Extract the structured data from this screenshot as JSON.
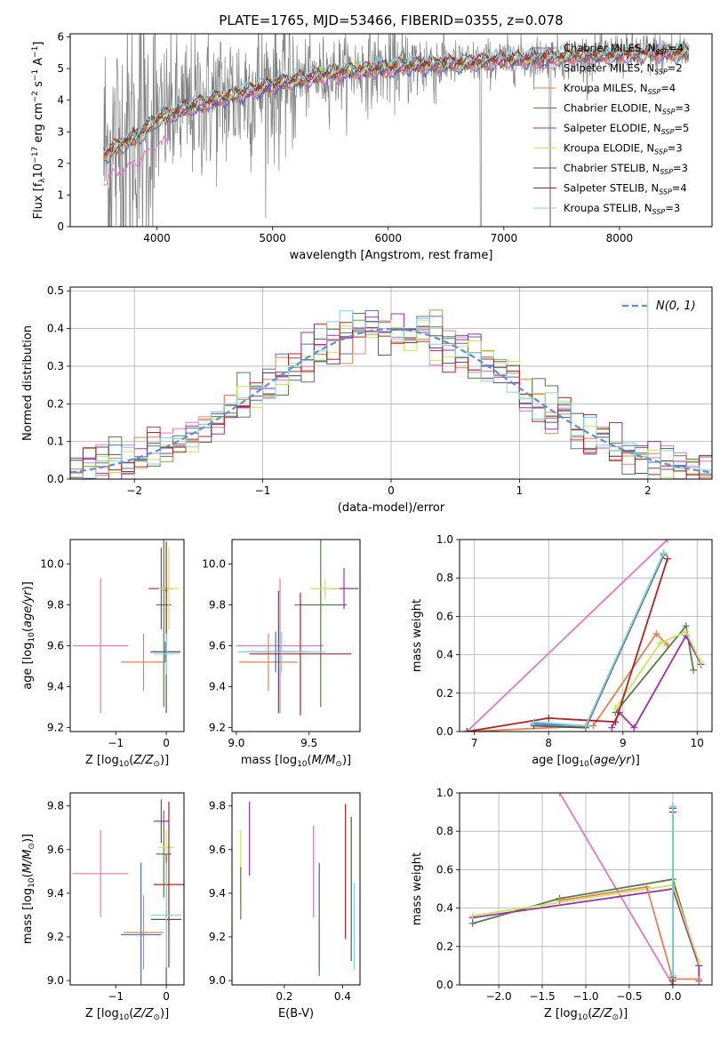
{
  "figure": {
    "title": "PLATE=1765, MJD=53466, FIBERID=0355, z=0.078"
  },
  "colors": {
    "chabrier_miles": "#4c72b0",
    "salpeter_miles": "#e377c2",
    "kroupa_miles": "#dd8452",
    "chabrier_elodie": "#5a7a4a",
    "salpeter_elodie": "#9b30b0",
    "kroupa_elodie": "#c8e65a",
    "chabrier_stelib": "#555555",
    "salpeter_stelib": "#b22222",
    "kroupa_stelib": "#7fd3de",
    "data": "#808080",
    "normal": "#5b8fd6"
  },
  "legend_entries": [
    {
      "key": "chabrier_miles",
      "label": "Chabrier MILES, N",
      "sub": "SSP",
      "val": "=4"
    },
    {
      "key": "salpeter_miles",
      "label": "Salpeter MILES, N",
      "sub": "SSP",
      "val": "=2"
    },
    {
      "key": "kroupa_miles",
      "label": "Kroupa MILES, N",
      "sub": "SSP",
      "val": "=4"
    },
    {
      "key": "chabrier_elodie",
      "label": "Chabrier ELODIE, N",
      "sub": "SSP",
      "val": "=3"
    },
    {
      "key": "salpeter_elodie",
      "label": "Salpeter ELODIE, N",
      "sub": "SSP",
      "val": "=5"
    },
    {
      "key": "kroupa_elodie",
      "label": "Kroupa ELODIE, N",
      "sub": "SSP",
      "val": "=3"
    },
    {
      "key": "chabrier_stelib",
      "label": "Chabrier STELIB, N",
      "sub": "SSP",
      "val": "=3"
    },
    {
      "key": "salpeter_stelib",
      "label": "Salpeter STELIB, N",
      "sub": "SSP",
      "val": "=4"
    },
    {
      "key": "kroupa_stelib",
      "label": "Kroupa STELIB, N",
      "sub": "SSP",
      "val": "=3"
    }
  ],
  "chart_data": [
    {
      "id": "spectrum",
      "type": "line",
      "xlabel": "wavelength [Angstrom, rest frame]",
      "ylabel": "Flux [f_λ 10^-17 erg cm^-2 s^-1 A^-1]",
      "xlim": [
        3250,
        8800
      ],
      "ylim": [
        0,
        6.1
      ],
      "xticks": [
        4000,
        5000,
        6000,
        7000,
        8000
      ],
      "yticks": [
        0,
        1,
        2,
        3,
        4,
        5,
        6
      ],
      "continuum": {
        "x": [
          3540,
          3700,
          3850,
          4000,
          4300,
          4700,
          5000,
          5300,
          5600,
          5900,
          6200,
          6500,
          6800,
          7100,
          7400,
          7700,
          8000,
          8300,
          8600
        ],
        "y": [
          2.3,
          2.6,
          2.9,
          3.4,
          3.8,
          4.2,
          4.5,
          4.7,
          4.9,
          5.0,
          5.1,
          5.15,
          5.2,
          5.3,
          5.35,
          5.4,
          5.45,
          5.5,
          5.5
        ]
      }
    },
    {
      "id": "residuals",
      "type": "bar",
      "xlabel": "(data-model)/error",
      "ylabel": "Normed distribution",
      "xlim": [
        -2.5,
        2.5
      ],
      "ylim": [
        0,
        0.51
      ],
      "xticks": [
        -2,
        -1,
        0,
        1,
        2
      ],
      "yticks": [
        0.0,
        0.1,
        0.2,
        0.3,
        0.4,
        0.5
      ],
      "bin_width": 0.1,
      "legend": "N(0,1)",
      "grid": true
    },
    {
      "id": "age_vs_Z",
      "type": "scatter",
      "xlabel": "Z [log10(Z/Z_sun)]",
      "ylabel": "age [log10(age/yr)]",
      "xlim": [
        -1.9,
        0.35
      ],
      "ylim": [
        9.18,
        10.12
      ],
      "xticks": [
        -1,
        0
      ],
      "yticks": [
        9.2,
        9.4,
        9.6,
        9.8,
        10.0
      ],
      "points": [
        {
          "s": "salpeter_miles",
          "x": -1.3,
          "y": 9.6,
          "xerr": 0.55,
          "yerr": 0.33
        },
        {
          "s": "kroupa_miles",
          "x": -0.45,
          "y": 9.52,
          "xerr": 0.45,
          "yerr": 0.14
        },
        {
          "s": "chabrier_miles",
          "x": -0.02,
          "y": 9.57,
          "xerr": 0.3,
          "yerr": 0.05
        },
        {
          "s": "chabrier_elodie",
          "x": -0.05,
          "y": 9.8,
          "xerr": 0.15,
          "yerr": 0.5
        },
        {
          "s": "salpeter_elodie",
          "x": -0.1,
          "y": 9.88,
          "xerr": 0.25,
          "yerr": 0.2
        },
        {
          "s": "kroupa_elodie",
          "x": 0.05,
          "y": 9.88,
          "xerr": 0.2,
          "yerr": 0.2
        },
        {
          "s": "chabrier_stelib",
          "x": 0.0,
          "y": 9.57,
          "xerr": 0.28,
          "yerr": 0.3
        },
        {
          "s": "salpeter_stelib",
          "x": 0.0,
          "y": 9.87,
          "xerr": 0.02,
          "yerr": 0.24
        },
        {
          "s": "kroupa_stelib",
          "x": 0.0,
          "y": 9.56,
          "xerr": 0.25,
          "yerr": 0.1
        }
      ]
    },
    {
      "id": "age_vs_mass",
      "type": "scatter",
      "xlabel": "mass [log10(M/M_sun)]",
      "ylabel": "",
      "xlim": [
        8.97,
        9.85
      ],
      "ylim": [
        9.18,
        10.12
      ],
      "xticks": [
        9.0,
        9.5
      ],
      "yticks": [
        9.2,
        9.4,
        9.6,
        9.8,
        10.0
      ],
      "points": [
        {
          "s": "salpeter_miles",
          "x": 9.3,
          "y": 9.6,
          "xerr": 0.3,
          "yerr": 0.33
        },
        {
          "s": "kroupa_miles",
          "x": 9.22,
          "y": 9.52,
          "xerr": 0.2,
          "yerr": 0.14
        },
        {
          "s": "chabrier_miles",
          "x": 9.27,
          "y": 9.57,
          "xerr": 0.2,
          "yerr": 0.1
        },
        {
          "s": "chabrier_elodie",
          "x": 9.58,
          "y": 9.8,
          "xerr": 0.18,
          "yerr": 0.5
        },
        {
          "s": "salpeter_elodie",
          "x": 9.74,
          "y": 9.88,
          "xerr": 0.1,
          "yerr": 0.1
        },
        {
          "s": "kroupa_elodie",
          "x": 9.61,
          "y": 9.88,
          "xerr": 0.1,
          "yerr": 0.05
        },
        {
          "s": "chabrier_stelib",
          "x": 9.29,
          "y": 9.57,
          "xerr": 0.2,
          "yerr": 0.3
        },
        {
          "s": "salpeter_stelib",
          "x": 9.44,
          "y": 9.56,
          "xerr": 0.35,
          "yerr": 0.3
        },
        {
          "s": "kroupa_stelib",
          "x": 9.31,
          "y": 9.57,
          "xerr": 0.3,
          "yerr": 0.1
        }
      ]
    },
    {
      "id": "mass_weight_vs_age",
      "type": "line",
      "xlabel": "age [log10(age/yr)]",
      "ylabel": "mass weight",
      "xlim": [
        6.8,
        10.2
      ],
      "ylim": [
        0,
        1.0
      ],
      "xticks": [
        7,
        8,
        9,
        10
      ],
      "yticks": [
        0.0,
        0.2,
        0.4,
        0.6,
        0.8,
        1.0
      ],
      "series": [
        {
          "s": "salpeter_miles",
          "x": [
            6.9,
            9.6
          ],
          "y": [
            0.0,
            1.0
          ]
        },
        {
          "s": "chabrier_miles",
          "x": [
            7.8,
            8.5,
            9.55
          ],
          "y": [
            0.04,
            0.03,
            0.93
          ]
        },
        {
          "s": "kroupa_miles",
          "x": [
            6.9,
            8.6,
            9.45,
            9.6
          ],
          "y": [
            0.0,
            0.03,
            0.51,
            0.45
          ]
        },
        {
          "s": "chabrier_elodie",
          "x": [
            8.9,
            9.85,
            9.95
          ],
          "y": [
            0.1,
            0.55,
            0.32
          ]
        },
        {
          "s": "salpeter_elodie",
          "x": [
            8.85,
            8.95,
            9.15,
            9.85,
            10.05
          ],
          "y": [
            0.02,
            0.1,
            0.02,
            0.5,
            0.35
          ]
        },
        {
          "s": "kroupa_elodie",
          "x": [
            8.9,
            9.5,
            9.85,
            10.05
          ],
          "y": [
            0.12,
            0.46,
            0.52,
            0.36
          ]
        },
        {
          "s": "chabrier_stelib",
          "x": [
            7.8,
            8.5,
            9.55
          ],
          "y": [
            0.03,
            0.02,
            0.92
          ]
        },
        {
          "s": "salpeter_stelib",
          "x": [
            6.9,
            8.0,
            8.9,
            9.6
          ],
          "y": [
            0.0,
            0.07,
            0.05,
            0.9
          ]
        },
        {
          "s": "kroupa_stelib",
          "x": [
            7.8,
            8.5,
            9.55
          ],
          "y": [
            0.05,
            0.03,
            0.93
          ]
        }
      ]
    },
    {
      "id": "mass_vs_Z",
      "type": "scatter",
      "xlabel": "Z [log10(Z/Z_sun)]",
      "ylabel": "mass [log10(M/M_sun)]",
      "xlim": [
        -1.9,
        0.35
      ],
      "ylim": [
        8.98,
        9.86
      ],
      "xticks": [
        -1,
        0
      ],
      "yticks": [
        9.0,
        9.2,
        9.4,
        9.6,
        9.8
      ],
      "points": [
        {
          "s": "salpeter_miles",
          "x": -1.3,
          "y": 9.49,
          "xerr": 0.55,
          "yerr": 0.2
        },
        {
          "s": "kroupa_miles",
          "x": -0.45,
          "y": 9.22,
          "xerr": 0.4,
          "yerr": 0.17
        },
        {
          "s": "chabrier_miles",
          "x": -0.5,
          "y": 9.21,
          "xerr": 0.4,
          "yerr": 0.33
        },
        {
          "s": "chabrier_elodie",
          "x": -0.05,
          "y": 9.58,
          "xerr": 0.15,
          "yerr": 0.2
        },
        {
          "s": "salpeter_elodie",
          "x": -0.1,
          "y": 9.73,
          "xerr": 0.15,
          "yerr": 0.1
        },
        {
          "s": "kroupa_elodie",
          "x": 0.0,
          "y": 9.61,
          "xerr": 0.15,
          "yerr": 0.08
        },
        {
          "s": "chabrier_stelib",
          "x": 0.0,
          "y": 9.28,
          "xerr": 0.3,
          "yerr": 0.3
        },
        {
          "s": "salpeter_stelib",
          "x": 0.05,
          "y": 9.44,
          "xerr": 0.3,
          "yerr": 0.38
        },
        {
          "s": "kroupa_stelib",
          "x": 0.0,
          "y": 9.3,
          "xerr": 0.3,
          "yerr": 0.24
        }
      ]
    },
    {
      "id": "mass_vs_ebv",
      "type": "scatter",
      "xlabel": "E(B-V)",
      "ylabel": "",
      "xlim": [
        0.02,
        0.46
      ],
      "ylim": [
        8.98,
        9.86
      ],
      "xticks": [
        0.2,
        0.4
      ],
      "yticks": [
        9.0,
        9.2,
        9.4,
        9.6,
        9.8
      ],
      "points": [
        {
          "s": "kroupa_elodie",
          "x": 0.05,
          "y": 9.52,
          "xerr": 0,
          "yerr": 0.17
        },
        {
          "s": "chabrier_elodie",
          "x": 0.05,
          "y": 9.4,
          "xerr": 0,
          "yerr": 0.12
        },
        {
          "s": "salpeter_elodie",
          "x": 0.08,
          "y": 9.65,
          "xerr": 0,
          "yerr": 0.17
        },
        {
          "s": "salpeter_miles",
          "x": 0.3,
          "y": 9.5,
          "xerr": 0,
          "yerr": 0.21
        },
        {
          "s": "kroupa_miles",
          "x": 0.32,
          "y": 9.29,
          "xerr": 0,
          "yerr": 0.24
        },
        {
          "s": "chabrier_miles",
          "x": 0.32,
          "y": 9.28,
          "xerr": 0,
          "yerr": 0.26
        },
        {
          "s": "salpeter_stelib",
          "x": 0.41,
          "y": 9.5,
          "xerr": 0,
          "yerr": 0.31
        },
        {
          "s": "chabrier_stelib",
          "x": 0.43,
          "y": 9.42,
          "xerr": 0,
          "yerr": 0.33
        },
        {
          "s": "kroupa_stelib",
          "x": 0.44,
          "y": 9.25,
          "xerr": 0,
          "yerr": 0.2
        }
      ]
    },
    {
      "id": "mass_weight_vs_Z",
      "type": "line",
      "xlabel": "Z [log10(Z/Z_sun)]",
      "ylabel": "mass weight",
      "xlim": [
        -2.45,
        0.45
      ],
      "ylim": [
        0,
        1.0
      ],
      "xticks": [
        -2.0,
        -1.5,
        -1.0,
        -0.5,
        0.0
      ],
      "yticks": [
        0.0,
        0.2,
        0.4,
        0.6,
        0.8,
        1.0
      ],
      "series": [
        {
          "s": "salpeter_miles",
          "x": [
            -1.3,
            0.0
          ],
          "y": [
            1.0,
            0.0
          ]
        },
        {
          "s": "chabrier_elodie",
          "x": [
            -2.3,
            -1.3,
            0.0,
            0.3
          ],
          "y": [
            0.32,
            0.45,
            0.55,
            0.1
          ]
        },
        {
          "s": "salpeter_elodie",
          "x": [
            -2.3,
            0.0,
            0.3,
            0.3
          ],
          "y": [
            0.35,
            0.5,
            0.1,
            0.02
          ]
        },
        {
          "s": "kroupa_elodie",
          "x": [
            -2.3,
            0.0,
            0.3
          ],
          "y": [
            0.36,
            0.52,
            0.12
          ]
        },
        {
          "s": "kroupa_miles",
          "x": [
            -1.3,
            -0.3,
            0.0,
            0.3
          ],
          "y": [
            0.44,
            0.51,
            0.03,
            0.03
          ]
        },
        {
          "s": "chabrier_miles",
          "x": [
            0.0,
            0.0
          ],
          "y": [
            0.04,
            0.93
          ]
        },
        {
          "s": "salpeter_stelib",
          "x": [
            0.0,
            0.0
          ],
          "y": [
            0.0,
            0.9
          ]
        },
        {
          "s": "chabrier_stelib",
          "x": [
            0.0,
            0.0
          ],
          "y": [
            0.02,
            0.92
          ]
        },
        {
          "s": "kroupa_stelib",
          "x": [
            0.0,
            0.0
          ],
          "y": [
            0.05,
            0.93
          ]
        }
      ]
    }
  ]
}
